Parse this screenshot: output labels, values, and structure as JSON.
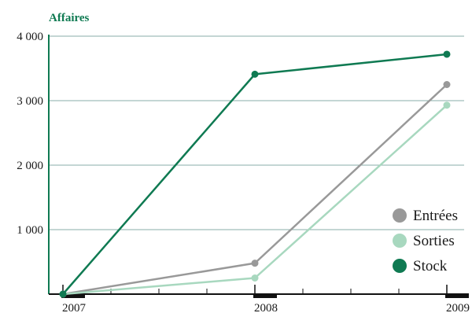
{
  "chart_data": {
    "type": "line",
    "ylabel": "Affaires",
    "xlabel": "",
    "categories": [
      "2007",
      "2008",
      "2009"
    ],
    "ylim": [
      0,
      4000
    ],
    "yticks": [
      0,
      1000,
      2000,
      3000,
      4000
    ],
    "ytick_labels": [
      "1 000",
      "2 000",
      "3 000",
      "4 000"
    ],
    "grid": true,
    "legend_position": "bottom-right",
    "series": [
      {
        "name": "Entrées",
        "color": "#999999",
        "values": [
          0,
          480,
          3250
        ]
      },
      {
        "name": "Sorties",
        "color": "#a8d8bf",
        "values": [
          0,
          250,
          2930
        ]
      },
      {
        "name": "Stock",
        "color": "#0f7a52",
        "values": [
          0,
          3410,
          3720
        ]
      }
    ],
    "ylabel_color": "#0f7a52",
    "axis_color": "#0f7a52",
    "grid_color": "#8aaea8"
  }
}
